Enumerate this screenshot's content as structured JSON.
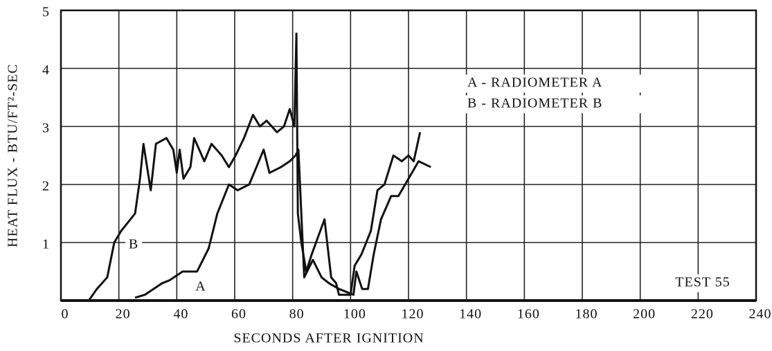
{
  "chart_data": {
    "type": "line",
    "xlabel": "SECONDS AFTER IGNITION",
    "ylabel": "HEAT FLUX - BTU/FT²-SEC",
    "xlim": [
      0,
      240
    ],
    "xticks": [
      0,
      20,
      40,
      60,
      80,
      100,
      120,
      140,
      160,
      180,
      200,
      220,
      240
    ],
    "ylim": [
      0,
      5
    ],
    "yticks": [
      1,
      2,
      3,
      4,
      5
    ],
    "grid": true,
    "annotations": [
      "B",
      "A",
      "TEST 55"
    ],
    "series": [
      {
        "name": "A - RADIOMETER A",
        "color": "#111111",
        "x": [
          25.6,
          29,
          35,
          37.5,
          42,
          47,
          51,
          54,
          58,
          61,
          65,
          67.5,
          70,
          72,
          76,
          79,
          81,
          82,
          84,
          87,
          90,
          92.5,
          96,
          101,
          102,
          104,
          106,
          108,
          110.5,
          114,
          116.5,
          120,
          123.5,
          127.7
        ],
        "values": [
          0.05,
          0.1,
          0.3,
          0.35,
          0.5,
          0.5,
          0.9,
          1.5,
          2.0,
          1.9,
          2.0,
          2.3,
          2.6,
          2.2,
          2.3,
          2.4,
          2.5,
          2.6,
          0.4,
          0.7,
          0.4,
          0.3,
          0.2,
          0.1,
          0.5,
          0.2,
          0.2,
          0.8,
          1.4,
          1.8,
          1.8,
          2.1,
          2.4,
          2.3
        ]
      },
      {
        "name": "B - RADIOMETER B",
        "color": "#111111",
        "x": [
          9.6,
          12.4,
          16,
          18.4,
          20.8,
          25.6,
          27.3,
          28.5,
          31,
          32.8,
          36.4,
          38.8,
          40,
          41,
          42.3,
          44.7,
          46,
          49.5,
          52,
          55.5,
          58,
          60.3,
          63.2,
          66.3,
          68.7,
          71,
          74.6,
          77,
          79,
          80.6,
          81.3,
          81.8,
          83,
          84.7,
          86.6,
          91,
          93.3,
          95,
          96,
          100,
          101.4,
          103.8,
          107,
          109.3,
          111.7,
          114.8,
          117.7,
          120,
          121.8,
          124
        ],
        "values": [
          0,
          0.2,
          0.4,
          1.0,
          1.2,
          1.5,
          2.1,
          2.7,
          1.9,
          2.7,
          2.8,
          2.6,
          2.2,
          2.6,
          2.1,
          2.3,
          2.8,
          2.4,
          2.7,
          2.5,
          2.3,
          2.5,
          2.8,
          3.2,
          3.0,
          3.1,
          2.9,
          3.0,
          3.3,
          3.0,
          4.6,
          1.5,
          1.0,
          0.5,
          0.8,
          1.4,
          0.4,
          0.3,
          0.1,
          0.1,
          0.6,
          0.8,
          1.2,
          1.9,
          2.0,
          2.5,
          2.4,
          2.5,
          2.4,
          2.9
        ]
      }
    ]
  }
}
